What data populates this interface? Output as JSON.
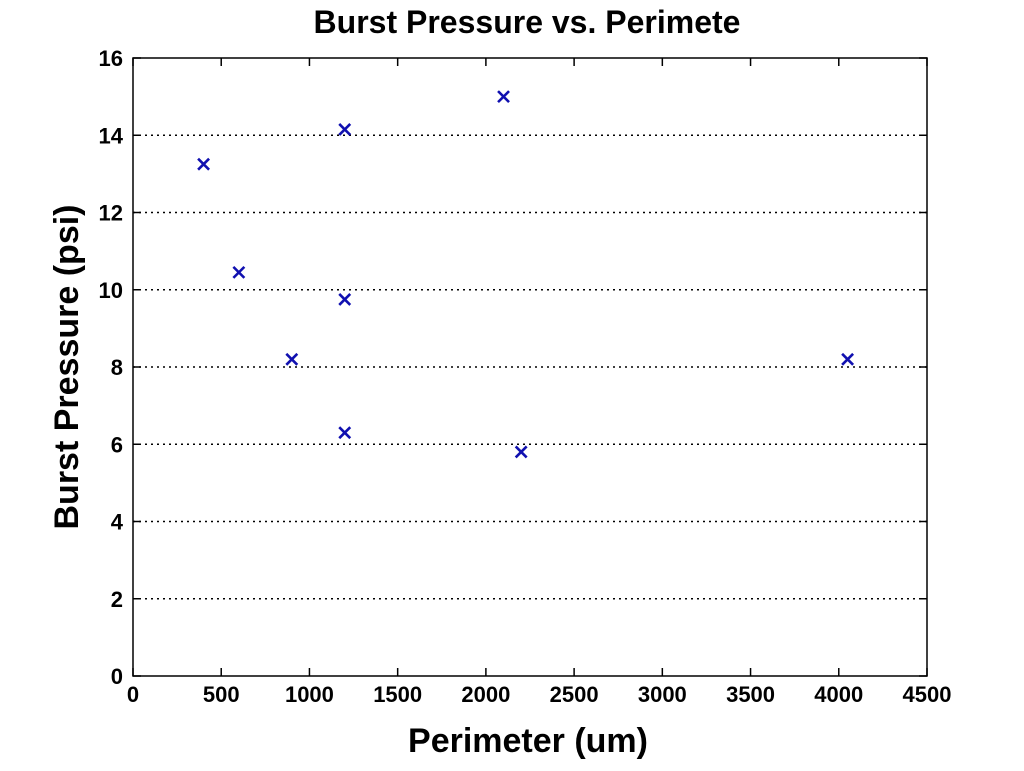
{
  "chart_data": {
    "type": "scatter",
    "title": "Burst Pressure vs. Perimete",
    "xlabel": "Perimeter (um)",
    "ylabel": "Burst Pressure (psi)",
    "xlim": [
      0,
      4500
    ],
    "ylim": [
      0,
      16
    ],
    "x_ticks": [
      "0",
      "500",
      "1000",
      "1500",
      "2000",
      "2500",
      "3000",
      "3500",
      "4000",
      "4500"
    ],
    "y_ticks": [
      "0",
      "2",
      "4",
      "6",
      "8",
      "10",
      "12",
      "14",
      "16"
    ],
    "grid": "horizontal-dotted",
    "legend": "none",
    "marker": "x",
    "marker_color": "#1010b0",
    "series": [
      {
        "points": [
          {
            "x": 400,
            "y": 13.25
          },
          {
            "x": 600,
            "y": 10.45
          },
          {
            "x": 900,
            "y": 8.2
          },
          {
            "x": 1200,
            "y": 14.15
          },
          {
            "x": 1200,
            "y": 9.75
          },
          {
            "x": 1200,
            "y": 6.3
          },
          {
            "x": 2100,
            "y": 15.0
          },
          {
            "x": 2200,
            "y": 5.8
          },
          {
            "x": 4050,
            "y": 8.2
          }
        ]
      }
    ]
  }
}
